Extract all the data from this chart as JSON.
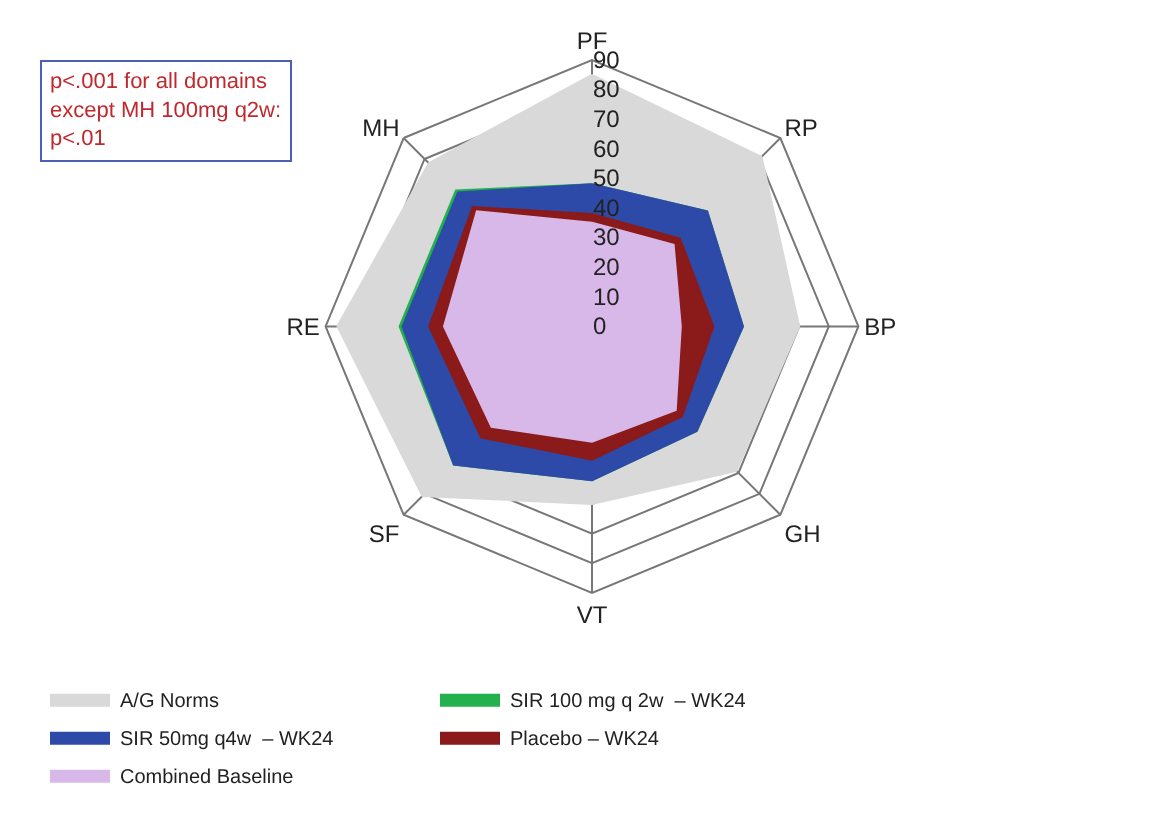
{
  "chart_data": {
    "type": "radar",
    "categories": [
      "PF",
      "RP",
      "BP",
      "GH",
      "VT",
      "SF",
      "RE",
      "MH"
    ],
    "series": [
      {
        "name": "A/G Norms",
        "color": "#d9d9d9",
        "values": [
          85,
          81,
          70,
          69,
          60,
          81,
          86,
          78
        ]
      },
      {
        "name": "SIR 100 mg q 2w  – WK24",
        "color": "#22b14c",
        "values": [
          48,
          55,
          51,
          50,
          52,
          66,
          65,
          65
        ]
      },
      {
        "name": "SIR 50mg q4w  – WK24",
        "color": "#2e4aa8",
        "values": [
          48,
          55,
          51,
          50,
          52,
          66,
          64,
          64
        ]
      },
      {
        "name": "Placebo – WK24",
        "color": "#8b1a1a",
        "values": [
          38,
          42,
          41,
          43,
          45,
          53,
          55,
          57
        ]
      },
      {
        "name": "Combined Baseline",
        "color": "#d8b8e8",
        "values": [
          35,
          39,
          30,
          40,
          39,
          48,
          50,
          55
        ]
      }
    ],
    "ylim": [
      0,
      90
    ],
    "yticks": [
      0,
      10,
      20,
      30,
      40,
      50,
      60,
      70,
      80,
      90
    ],
    "grid": true,
    "legend": "bottom",
    "annotations": [
      "p<.001 for all domains except MH 100mg q2w: p<.01"
    ]
  }
}
